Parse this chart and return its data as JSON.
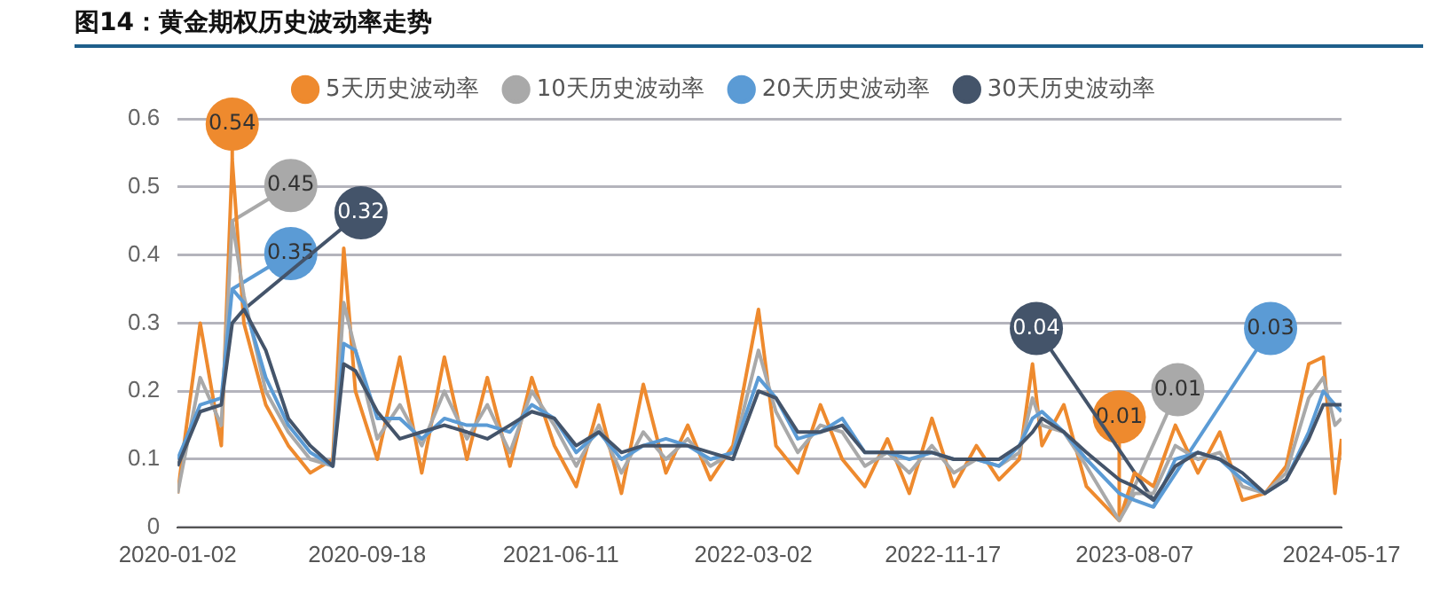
{
  "chart_data": {
    "type": "line",
    "title": "图14：黄金期权历史波动率走势",
    "x": [
      "2020-01-02",
      "2020-02-02",
      "2020-03-02",
      "2020-03-17",
      "2020-04-02",
      "2020-05-02",
      "2020-06-02",
      "2020-07-02",
      "2020-08-02",
      "2020-08-17",
      "2020-09-02",
      "2020-10-02",
      "2020-11-02",
      "2020-12-02",
      "2021-01-02",
      "2021-02-02",
      "2021-03-02",
      "2021-04-02",
      "2021-05-02",
      "2021-06-02",
      "2021-07-02",
      "2021-08-02",
      "2021-09-02",
      "2021-10-02",
      "2021-11-02",
      "2021-12-02",
      "2022-01-02",
      "2022-02-02",
      "2022-03-09",
      "2022-04-02",
      "2022-05-02",
      "2022-06-02",
      "2022-07-02",
      "2022-08-02",
      "2022-09-02",
      "2022-10-02",
      "2022-11-02",
      "2022-12-02",
      "2023-01-02",
      "2023-02-02",
      "2023-03-02",
      "2023-03-20",
      "2023-04-02",
      "2023-05-02",
      "2023-06-02",
      "2023-07-17",
      "2023-08-07",
      "2023-09-02",
      "2023-10-02",
      "2023-11-02",
      "2023-12-02",
      "2024-01-02",
      "2024-02-02",
      "2024-03-02",
      "2024-04-02",
      "2024-04-22",
      "2024-05-08",
      "2024-05-17"
    ],
    "series": [
      {
        "name": "5天历史波动率",
        "color": "#ee8a2e",
        "values": [
          0.05,
          0.3,
          0.12,
          0.54,
          0.3,
          0.18,
          0.12,
          0.08,
          0.1,
          0.41,
          0.2,
          0.1,
          0.25,
          0.08,
          0.25,
          0.1,
          0.22,
          0.09,
          0.22,
          0.12,
          0.06,
          0.18,
          0.05,
          0.21,
          0.08,
          0.15,
          0.07,
          0.12,
          0.32,
          0.12,
          0.08,
          0.18,
          0.1,
          0.06,
          0.13,
          0.05,
          0.16,
          0.06,
          0.12,
          0.07,
          0.1,
          0.24,
          0.12,
          0.18,
          0.06,
          0.01,
          0.08,
          0.06,
          0.15,
          0.08,
          0.14,
          0.04,
          0.05,
          0.09,
          0.24,
          0.25,
          0.05,
          0.13
        ]
      },
      {
        "name": "10天历史波动率",
        "color": "#a9a9a9",
        "values": [
          0.05,
          0.22,
          0.15,
          0.45,
          0.34,
          0.2,
          0.14,
          0.1,
          0.09,
          0.33,
          0.26,
          0.13,
          0.18,
          0.12,
          0.2,
          0.13,
          0.18,
          0.11,
          0.2,
          0.15,
          0.09,
          0.15,
          0.08,
          0.14,
          0.1,
          0.13,
          0.09,
          0.11,
          0.26,
          0.17,
          0.11,
          0.15,
          0.14,
          0.09,
          0.11,
          0.08,
          0.12,
          0.08,
          0.1,
          0.09,
          0.11,
          0.19,
          0.15,
          0.14,
          0.09,
          0.01,
          0.05,
          0.05,
          0.12,
          0.1,
          0.11,
          0.06,
          0.05,
          0.08,
          0.19,
          0.22,
          0.15,
          0.16
        ]
      },
      {
        "name": "20天历史波动率",
        "color": "#5b9bd5",
        "values": [
          0.1,
          0.18,
          0.19,
          0.35,
          0.33,
          0.22,
          0.15,
          0.11,
          0.09,
          0.27,
          0.26,
          0.16,
          0.16,
          0.13,
          0.16,
          0.15,
          0.15,
          0.14,
          0.18,
          0.16,
          0.11,
          0.14,
          0.1,
          0.12,
          0.13,
          0.12,
          0.1,
          0.11,
          0.22,
          0.19,
          0.13,
          0.14,
          0.16,
          0.11,
          0.11,
          0.1,
          0.11,
          0.1,
          0.1,
          0.09,
          0.12,
          0.16,
          0.17,
          0.14,
          0.1,
          0.05,
          0.04,
          0.03,
          0.1,
          0.11,
          0.1,
          0.07,
          0.05,
          0.07,
          0.14,
          0.2,
          0.18,
          0.17
        ]
      },
      {
        "name": "30天历史波动率",
        "color": "#44546a",
        "values": [
          0.09,
          0.17,
          0.18,
          0.3,
          0.32,
          0.26,
          0.16,
          0.12,
          0.09,
          0.24,
          0.23,
          0.17,
          0.13,
          0.14,
          0.15,
          0.14,
          0.13,
          0.15,
          0.17,
          0.16,
          0.12,
          0.14,
          0.11,
          0.12,
          0.12,
          0.12,
          0.11,
          0.1,
          0.2,
          0.19,
          0.14,
          0.14,
          0.15,
          0.11,
          0.11,
          0.11,
          0.11,
          0.1,
          0.1,
          0.1,
          0.12,
          0.14,
          0.16,
          0.14,
          0.11,
          0.07,
          0.06,
          0.04,
          0.09,
          0.11,
          0.1,
          0.08,
          0.05,
          0.07,
          0.13,
          0.18,
          0.18,
          0.18
        ]
      }
    ],
    "xlim": [
      "2020-01-02",
      "2024-05-17"
    ],
    "xticks": [
      "2020-01-02",
      "2020-09-18",
      "2021-06-11",
      "2022-03-02",
      "2022-11-17",
      "2023-08-07",
      "2024-05-17"
    ],
    "ylim": [
      0,
      0.6
    ],
    "yticks": [
      0,
      0.1,
      0.2,
      0.3,
      0.4,
      0.5,
      0.6
    ],
    "grid": "y",
    "legend": "top",
    "annotations": [
      {
        "text": "0.54",
        "x": "2020-03-17",
        "y": 0.54
      },
      {
        "text": "0.45",
        "x": "2020-03-17",
        "y": 0.45
      },
      {
        "text": "0.35",
        "x": "2020-03-17",
        "y": 0.35
      },
      {
        "text": "0.32",
        "x": "2020-04-02",
        "y": 0.32
      },
      {
        "text": "0.01",
        "x": "2023-07-17",
        "y": 0.01
      },
      {
        "text": "0.01",
        "x": "2023-07-17",
        "y": 0.01
      },
      {
        "text": "0.03",
        "x": "2023-09-02",
        "y": 0.03
      },
      {
        "text": "0.04",
        "x": "2023-09-02",
        "y": 0.04
      }
    ]
  }
}
